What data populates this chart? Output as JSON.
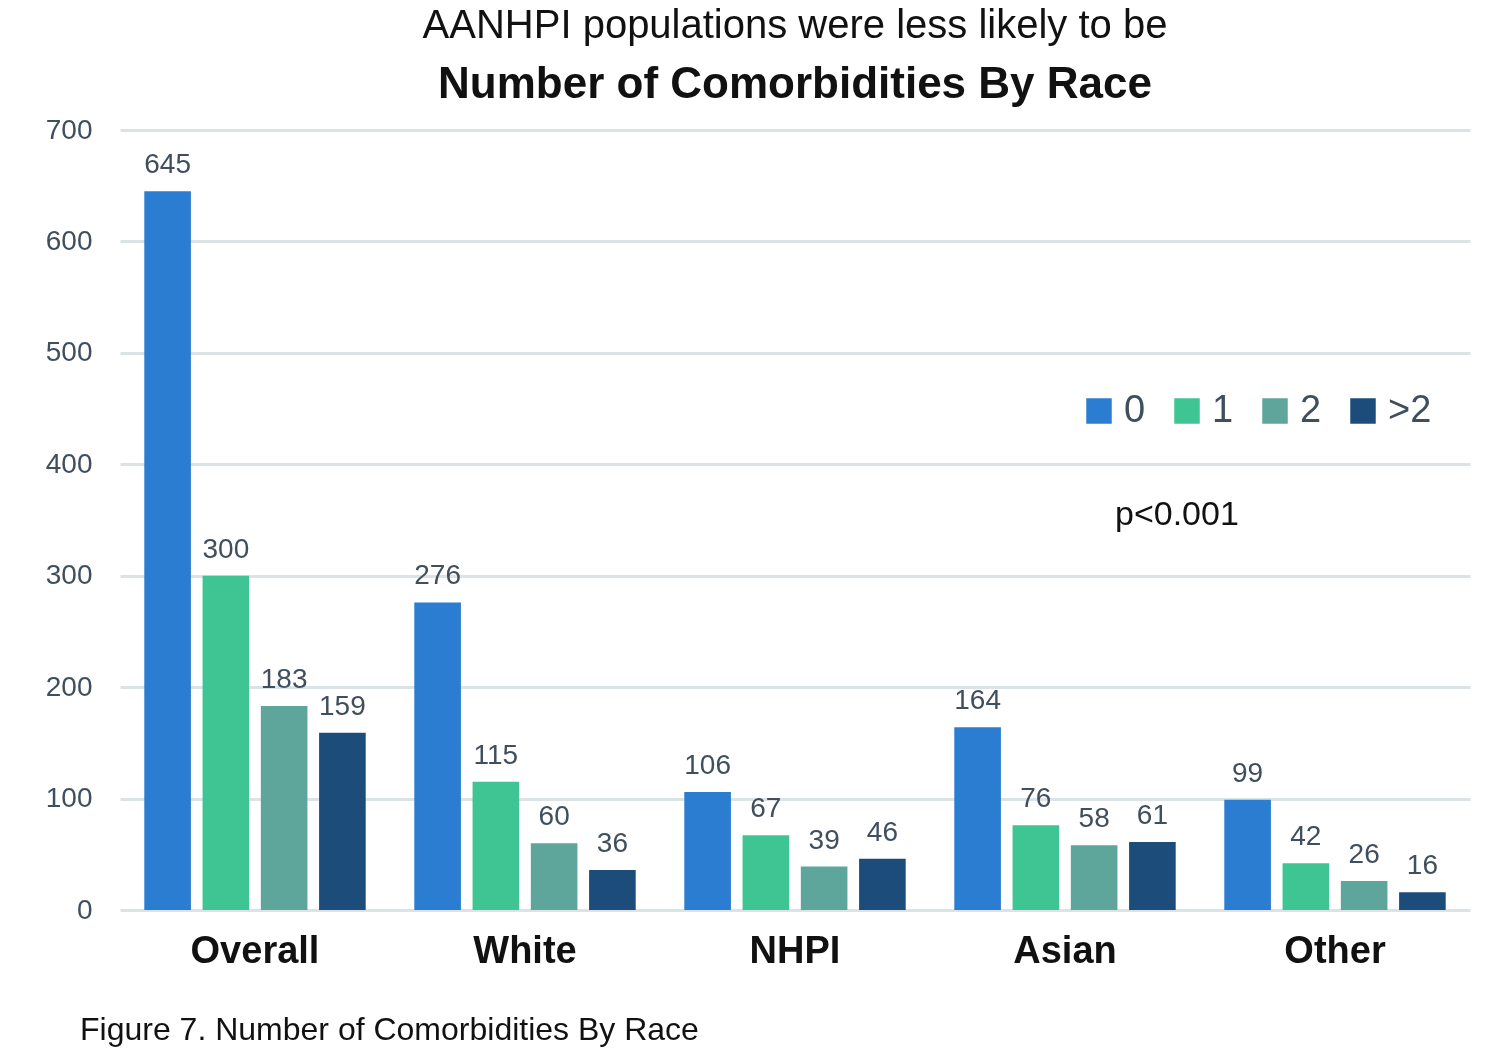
{
  "chart_data": {
    "type": "bar",
    "title": "Number of Comorbidities By Race",
    "categories": [
      "Overall",
      "White",
      "NHPI",
      "Asian",
      "Other"
    ],
    "series": [
      {
        "name": "0",
        "color": "#2a7dd1",
        "values": [
          645,
          276,
          106,
          164,
          99
        ]
      },
      {
        "name": "1",
        "color": "#3fc493",
        "values": [
          300,
          115,
          67,
          76,
          42
        ]
      },
      {
        "name": "2",
        "color": "#5ea59b",
        "values": [
          183,
          60,
          39,
          58,
          26
        ]
      },
      {
        "name": ">2",
        "color": "#1c4d7a",
        "values": [
          159,
          36,
          46,
          61,
          16
        ]
      }
    ],
    "ylim": [
      0,
      700
    ],
    "yticks": [
      0,
      100,
      200,
      300,
      400,
      500,
      600,
      700
    ],
    "grid": "y",
    "legend": "top right",
    "data_labels": true,
    "annotations": [
      "AANHPI populations were less likely to be",
      "p<0.001",
      "Figure 7. Number of Comorbidities By Race"
    ]
  }
}
